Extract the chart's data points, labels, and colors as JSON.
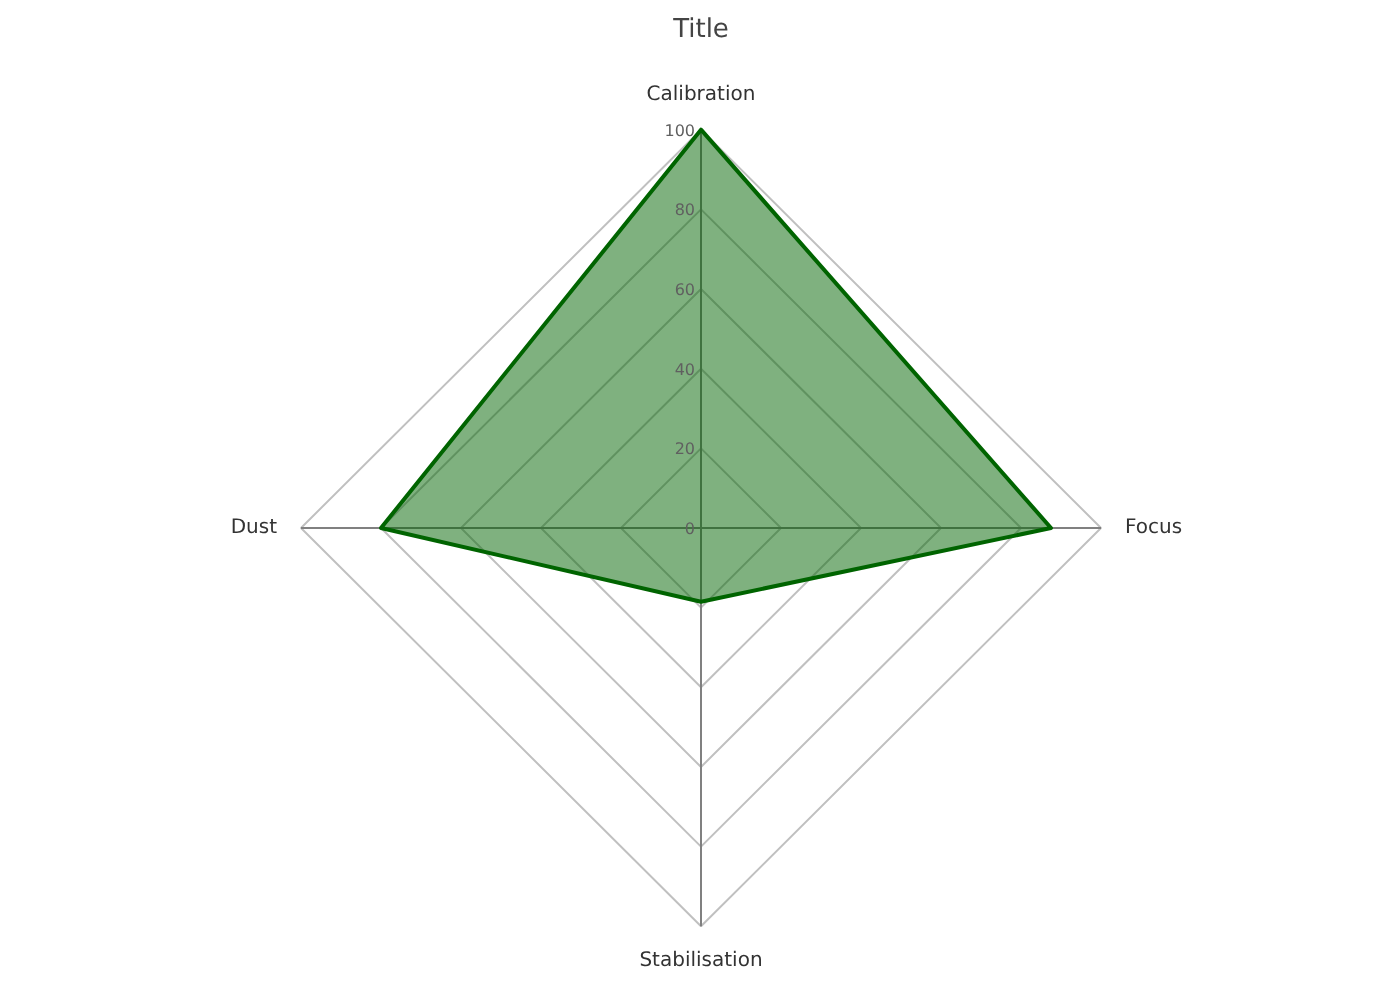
{
  "chart_data": {
    "type": "radar",
    "title": "Title",
    "categories": [
      "Calibration",
      "Focus",
      "Stabilisation",
      "Dust"
    ],
    "series": [
      {
        "color": "#006400",
        "values": [
          100,
          87.5,
          18.5,
          80
        ]
      }
    ],
    "ylim": [
      0,
      100
    ],
    "yticks": [
      0,
      20,
      40,
      60,
      80,
      100
    ],
    "grid": true
  }
}
